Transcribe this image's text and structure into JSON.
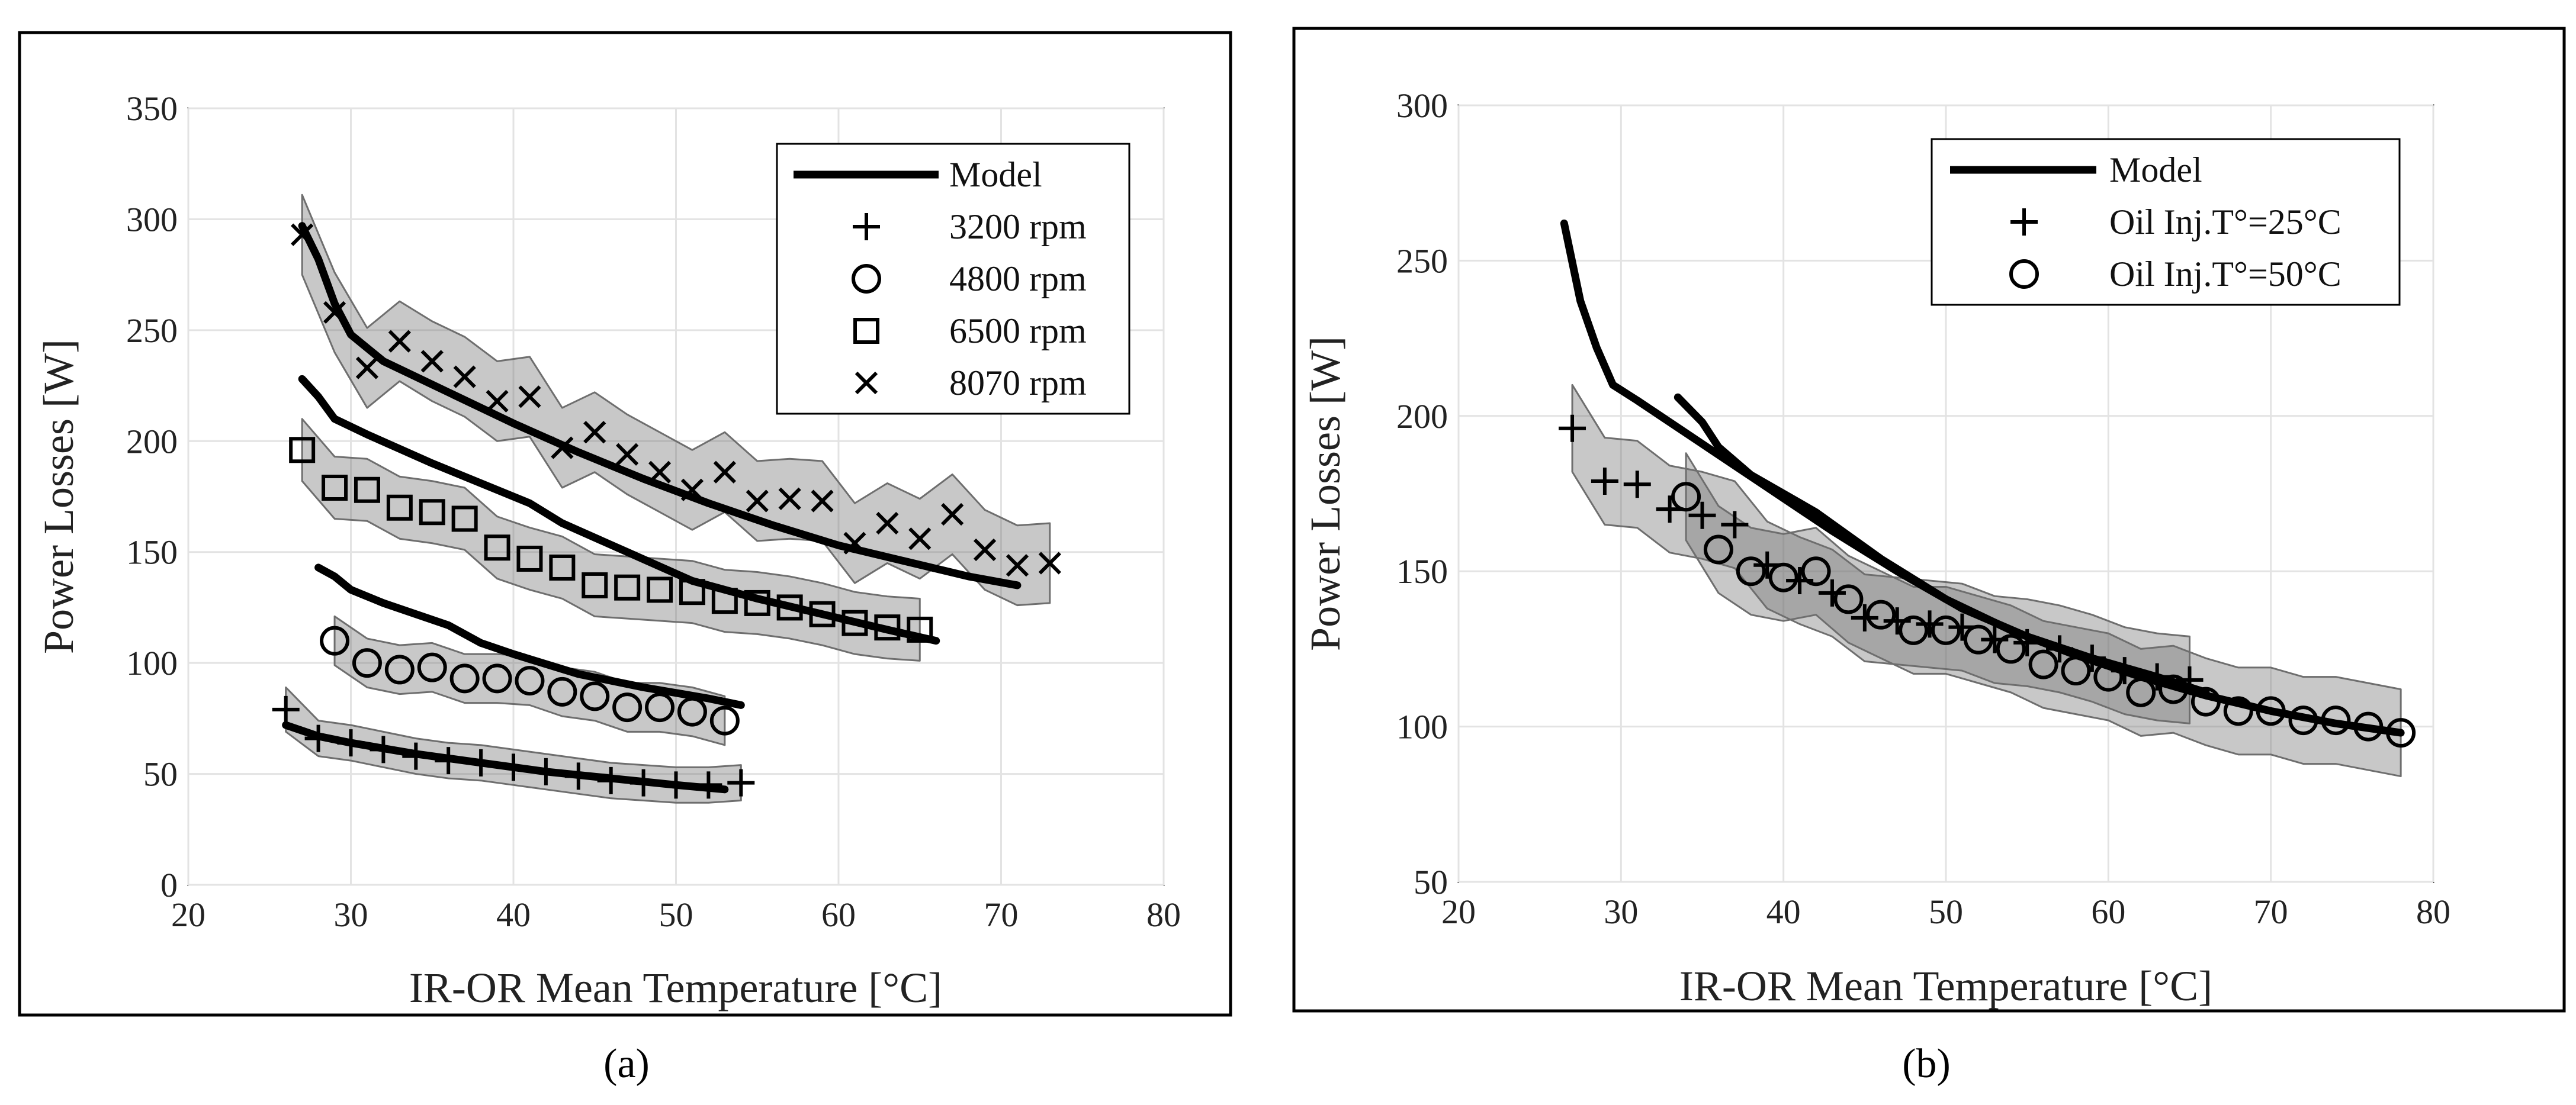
{
  "chart_data": [
    {
      "type": "line",
      "panel": "a",
      "caption": "(a)",
      "xlabel": "IR-OR Mean Temperature [°C]",
      "ylabel": "Power Losses [W]",
      "xlim": [
        20,
        80
      ],
      "ylim": [
        0,
        350
      ],
      "xticks": [
        "20",
        "30",
        "40",
        "50",
        "60",
        "70",
        "80"
      ],
      "yticks": [
        "0",
        "50",
        "100",
        "150",
        "200",
        "250",
        "300",
        "350"
      ],
      "grid": true,
      "legend_position": "top-right",
      "legend": [
        {
          "label": "Model",
          "marker": "line"
        },
        {
          "label": "3200 rpm",
          "marker": "plus"
        },
        {
          "label": "4800 rpm",
          "marker": "circle"
        },
        {
          "label": "6500 rpm",
          "marker": "square"
        },
        {
          "label": "8070 rpm",
          "marker": "x"
        }
      ],
      "series": [
        {
          "name": "3200 rpm",
          "marker": "plus",
          "x": [
            26,
            28,
            30,
            32,
            34,
            36,
            38,
            40,
            42,
            44,
            46,
            48,
            50,
            52,
            54
          ],
          "y": [
            79,
            66,
            64,
            61,
            58,
            56,
            55,
            53,
            51,
            49,
            47,
            46,
            45,
            45,
            46
          ],
          "band": [
            10,
            8,
            8,
            8,
            8,
            8,
            8,
            8,
            8,
            8,
            8,
            8,
            8,
            8,
            8
          ]
        },
        {
          "name": "4800 rpm",
          "marker": "circle",
          "x": [
            29,
            31,
            33,
            35,
            37,
            39,
            41,
            43,
            45,
            47,
            49,
            51,
            53
          ],
          "y": [
            110,
            100,
            97,
            98,
            93,
            93,
            92,
            87,
            85,
            80,
            80,
            78,
            74
          ],
          "band": [
            11,
            11,
            11,
            11,
            11,
            11,
            11,
            11,
            11,
            11,
            11,
            11,
            11
          ]
        },
        {
          "name": "6500 rpm",
          "marker": "square",
          "x": [
            27,
            29,
            31,
            33,
            35,
            37,
            39,
            41,
            43,
            45,
            47,
            49,
            51,
            53,
            55,
            57,
            59,
            61,
            63,
            65
          ],
          "y": [
            196,
            179,
            178,
            170,
            168,
            165,
            152,
            147,
            143,
            135,
            134,
            133,
            132,
            128,
            127,
            125,
            122,
            118,
            116,
            115
          ],
          "band": [
            14,
            14,
            14,
            14,
            14,
            14,
            14,
            14,
            14,
            14,
            14,
            14,
            14,
            14,
            14,
            14,
            14,
            14,
            14,
            14
          ]
        },
        {
          "name": "8070 rpm",
          "marker": "x",
          "x": [
            27,
            29,
            31,
            33,
            35,
            37,
            39,
            41,
            43,
            45,
            47,
            49,
            51,
            53,
            55,
            57,
            59,
            61,
            63,
            65,
            67,
            69,
            71,
            73
          ],
          "y": [
            293,
            258,
            233,
            245,
            236,
            229,
            218,
            220,
            197,
            204,
            194,
            186,
            178,
            186,
            173,
            174,
            173,
            154,
            163,
            156,
            167,
            151,
            144,
            145
          ],
          "band": [
            18,
            18,
            18,
            18,
            18,
            18,
            18,
            18,
            18,
            18,
            18,
            18,
            18,
            18,
            18,
            18,
            18,
            18,
            18,
            18,
            18,
            18,
            18,
            18
          ]
        }
      ],
      "model": [
        {
          "name": "Model 3200 rpm",
          "x": [
            26,
            28,
            30,
            34,
            38,
            42,
            46,
            50,
            53
          ],
          "y": [
            72,
            67,
            64,
            59,
            55,
            51,
            48,
            45,
            43
          ]
        },
        {
          "name": "Model 4800 rpm",
          "x": [
            28,
            29,
            30,
            32,
            36,
            38,
            40,
            44,
            48,
            52,
            54
          ],
          "y": [
            143,
            139,
            133,
            127,
            117,
            109,
            104,
            95,
            89,
            84,
            81
          ]
        },
        {
          "name": "Model 6500 rpm",
          "x": [
            27,
            28,
            29,
            31,
            35,
            39,
            41,
            43,
            47,
            51,
            55,
            59,
            63,
            66
          ],
          "y": [
            228,
            220,
            210,
            203,
            190,
            178,
            172,
            163,
            150,
            137,
            129,
            122,
            115,
            110
          ]
        },
        {
          "name": "Model 8070 rpm",
          "x": [
            27,
            28,
            29,
            30,
            32,
            36,
            40,
            44,
            48,
            52,
            56,
            60,
            64,
            68,
            71
          ],
          "y": [
            297,
            282,
            262,
            248,
            236,
            222,
            208,
            195,
            183,
            172,
            162,
            153,
            146,
            139,
            135
          ]
        }
      ]
    },
    {
      "type": "line",
      "panel": "b",
      "caption": "(b)",
      "xlabel": "IR-OR Mean Temperature [°C]",
      "ylabel": "Power Losses [W]",
      "xlim": [
        20,
        80
      ],
      "ylim": [
        50,
        300
      ],
      "xticks": [
        "20",
        "30",
        "40",
        "50",
        "60",
        "70",
        "80"
      ],
      "yticks": [
        "50",
        "100",
        "150",
        "200",
        "250",
        "300"
      ],
      "grid": true,
      "legend_position": "top-right",
      "legend": [
        {
          "label": "Model",
          "marker": "line"
        },
        {
          "label": "Oil Inj.T°=25°C",
          "marker": "plus"
        },
        {
          "label": "Oil Inj.T°=50°C",
          "marker": "circle"
        }
      ],
      "series": [
        {
          "name": "Oil Inj.T°=25°C",
          "marker": "plus",
          "x": [
            27,
            29,
            31,
            33,
            35,
            37,
            39,
            41,
            43,
            45,
            47,
            49,
            51,
            53,
            55,
            57,
            59,
            61,
            63,
            65
          ],
          "y": [
            196,
            179,
            178,
            170,
            168,
            165,
            152,
            147,
            143,
            135,
            134,
            133,
            132,
            128,
            127,
            125,
            122,
            118,
            116,
            115
          ],
          "band": [
            14,
            14,
            14,
            14,
            14,
            14,
            14,
            14,
            14,
            14,
            14,
            14,
            14,
            14,
            14,
            14,
            14,
            14,
            14,
            14
          ]
        },
        {
          "name": "Oil Inj.T°=50°C",
          "marker": "circle",
          "x": [
            34,
            36,
            38,
            40,
            42,
            44,
            46,
            48,
            50,
            52,
            54,
            56,
            58,
            60,
            62,
            64,
            66,
            68,
            70,
            72,
            74,
            76,
            78
          ],
          "y": [
            174,
            157,
            150,
            148,
            150,
            141,
            136,
            131,
            131,
            128,
            125,
            120,
            118,
            116,
            111,
            112,
            108,
            105,
            105,
            102,
            102,
            100,
            98
          ],
          "band": [
            14,
            14,
            14,
            14,
            14,
            14,
            14,
            14,
            14,
            14,
            14,
            14,
            14,
            14,
            14,
            14,
            14,
            14,
            14,
            14,
            14,
            14,
            14
          ]
        }
      ],
      "model": [
        {
          "name": "Model 25°C",
          "x": [
            26.5,
            27.5,
            28.5,
            29.5,
            31,
            35,
            39,
            43,
            47,
            51,
            55,
            59,
            63,
            66
          ],
          "y": [
            262,
            237,
            222,
            210,
            205,
            191,
            177,
            163,
            150,
            138,
            129,
            122,
            116,
            111
          ]
        },
        {
          "name": "Model 50°C",
          "x": [
            33.5,
            35,
            36,
            38,
            42,
            46,
            50,
            54,
            58,
            62,
            66,
            70,
            74,
            78
          ],
          "y": [
            206,
            198,
            190,
            181,
            169,
            154,
            141,
            131,
            123,
            116,
            110,
            105,
            101,
            98
          ]
        }
      ]
    }
  ]
}
